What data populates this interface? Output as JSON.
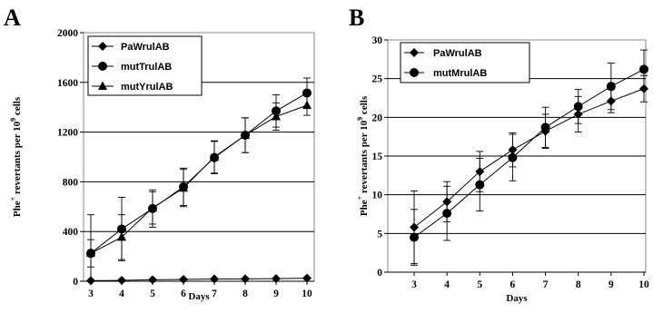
{
  "chart_data": [
    {
      "type": "line",
      "panel_label": "A",
      "xlabel": "Days",
      "ylabel_parts": [
        "Phe",
        "+",
        " revertants per 10",
        "9",
        " cells"
      ],
      "x": [
        3,
        4,
        5,
        6,
        7,
        8,
        9,
        10
      ],
      "xlim": [
        3,
        10
      ],
      "ylim": [
        0,
        2000
      ],
      "yticks": [
        0,
        400,
        800,
        1200,
        1600,
        2000
      ],
      "grid": true,
      "legend_position": "top-left",
      "series": [
        {
          "name": "PaWrulAB",
          "marker": "diamond",
          "values": [
            5,
            7,
            12,
            15,
            18,
            19,
            21,
            25
          ],
          "errors": [
            3,
            3,
            4,
            4,
            4,
            4,
            4,
            5
          ]
        },
        {
          "name": "mutTrulAB",
          "marker": "circle",
          "values": [
            225,
            420,
            585,
            760,
            995,
            1175,
            1370,
            1515
          ],
          "errors": [
            310,
            255,
            150,
            150,
            130,
            140,
            130,
            120
          ]
        },
        {
          "name": "mutYrulAB",
          "marker": "triangle",
          "values": [
            225,
            355,
            590,
            750,
            1000,
            1175,
            1325,
            1415
          ],
          "errors": [
            110,
            180,
            130,
            150,
            130,
            140,
            110,
            80
          ]
        }
      ]
    },
    {
      "type": "line",
      "panel_label": "B",
      "xlabel": "Days",
      "ylabel_parts": [
        "Phe",
        "+",
        " revertants per 10",
        "9",
        " cells"
      ],
      "x": [
        3,
        4,
        5,
        6,
        7,
        8,
        9,
        10
      ],
      "xlim": [
        3,
        10
      ],
      "ylim": [
        0,
        30
      ],
      "yticks": [
        0,
        5,
        10,
        15,
        20,
        25,
        30
      ],
      "grid": true,
      "legend_position": "top-left",
      "series": [
        {
          "name": "PaWrulAB",
          "marker": "diamond",
          "values": [
            5.8,
            9.1,
            13.0,
            15.8,
            18.2,
            20.4,
            22.1,
            23.7
          ],
          "errors": [
            4.7,
            2.6,
            2.6,
            2.2,
            2.2,
            2.3,
            1.5,
            1.7
          ]
        },
        {
          "name": "mutMrulAB",
          "marker": "circle",
          "values": [
            4.5,
            7.6,
            11.3,
            14.8,
            18.7,
            21.4,
            24.0,
            26.2
          ],
          "errors": [
            3.6,
            3.5,
            3.4,
            3.0,
            2.6,
            2.2,
            3.0,
            2.5
          ]
        }
      ]
    }
  ]
}
